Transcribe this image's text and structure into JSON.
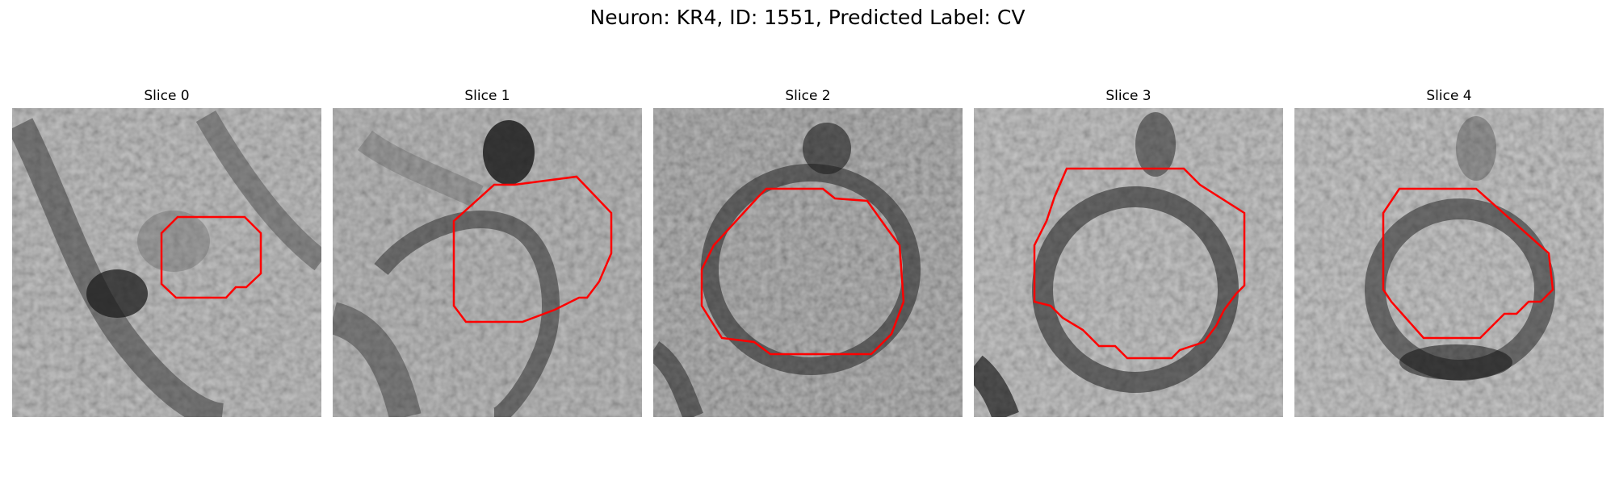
{
  "figure": {
    "title": "Neuron: KR4, ID: 1551, Predicted Label: CV"
  },
  "panels": [
    {
      "title": "Slice 0",
      "image": "grayscale-microscopy-slice",
      "contour_color": "#ff0000"
    },
    {
      "title": "Slice 1",
      "image": "grayscale-microscopy-slice",
      "contour_color": "#ff0000"
    },
    {
      "title": "Slice 2",
      "image": "grayscale-microscopy-slice",
      "contour_color": "#ff0000"
    },
    {
      "title": "Slice 3",
      "image": "grayscale-microscopy-slice",
      "contour_color": "#ff0000"
    },
    {
      "title": "Slice 4",
      "image": "grayscale-microscopy-slice",
      "contour_color": "#ff0000"
    }
  ]
}
